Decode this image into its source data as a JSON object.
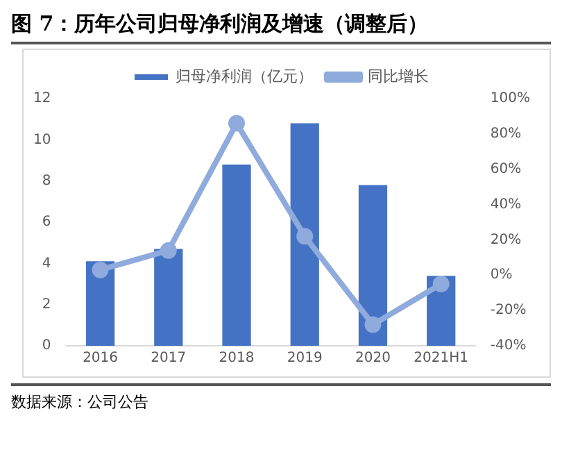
{
  "chart_data": {
    "type": "bar",
    "title": "图 7：历年公司归母净利润及增速（调整后）",
    "annotations": [
      "数据来源：公司公告"
    ],
    "categories": [
      "2016",
      "2017",
      "2018",
      "2019",
      "2020",
      "2021H1"
    ],
    "series": [
      {
        "name": "归母净利润（亿元）",
        "color": "#4472c4",
        "values": [
          4.1,
          4.7,
          8.8,
          10.8,
          7.8,
          3.4
        ]
      },
      {
        "name": "同比增长",
        "type": "line",
        "axis": "y2",
        "color": "#8faadc",
        "marker": "circle",
        "values": [
          3,
          14,
          86,
          22,
          -28,
          -5
        ]
      }
    ],
    "ylim": [
      0,
      12
    ],
    "yticks": [
      0,
      2,
      4,
      6,
      8,
      10,
      12
    ],
    "y2lim": [
      -40,
      100
    ],
    "y2ticks": [
      {
        "value": -40,
        "label": "-40%"
      },
      {
        "value": -20,
        "label": "-20%"
      },
      {
        "value": 0,
        "label": "0%"
      },
      {
        "value": 20,
        "label": "20%"
      },
      {
        "value": 40,
        "label": "40%"
      },
      {
        "value": 60,
        "label": "60%"
      },
      {
        "value": 80,
        "label": "80%"
      },
      {
        "value": 100,
        "label": "100%"
      }
    ],
    "grid": false,
    "legend": "top"
  }
}
